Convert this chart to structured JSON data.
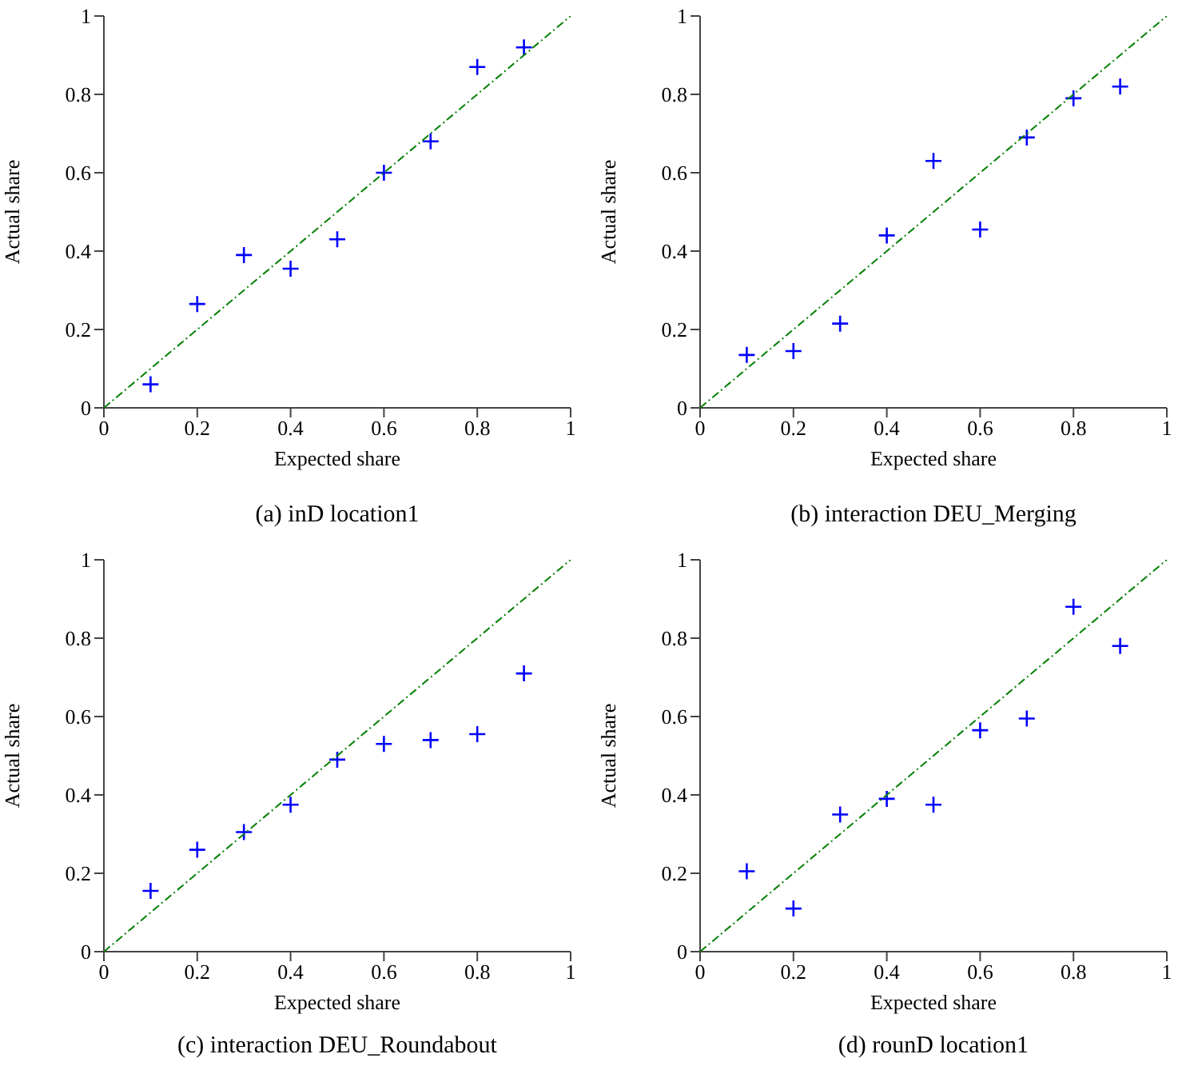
{
  "chart_data": [
    {
      "type": "scatter",
      "title": "(a) inD location1",
      "xlabel": "Expected share",
      "ylabel": "Actual share",
      "xlim": [
        0,
        1
      ],
      "ylim": [
        0,
        1
      ],
      "xticks": [
        0,
        0.2,
        0.4,
        0.6,
        0.8,
        1
      ],
      "yticks": [
        0,
        0.2,
        0.4,
        0.6,
        0.8,
        1
      ],
      "grid": false,
      "legend": false,
      "series": [
        {
          "type": "scatter",
          "marker": "cross",
          "color": "#0000ff",
          "x": [
            0.1,
            0.2,
            0.3,
            0.4,
            0.5,
            0.6,
            0.7,
            0.8,
            0.9
          ],
          "values": [
            0.06,
            0.265,
            0.39,
            0.355,
            0.43,
            0.6,
            0.68,
            0.87,
            0.92
          ]
        },
        {
          "type": "line",
          "color": "#008000",
          "line_style": "dashed",
          "x": [
            0,
            1
          ],
          "values": [
            0,
            1
          ]
        }
      ]
    },
    {
      "type": "scatter",
      "title": "(b) interaction DEU_Merging",
      "xlabel": "Expected share",
      "ylabel": "Actual share",
      "xlim": [
        0,
        1
      ],
      "ylim": [
        0,
        1
      ],
      "xticks": [
        0,
        0.2,
        0.4,
        0.6,
        0.8,
        1
      ],
      "yticks": [
        0,
        0.2,
        0.4,
        0.6,
        0.8,
        1
      ],
      "grid": false,
      "legend": false,
      "series": [
        {
          "type": "scatter",
          "marker": "cross",
          "color": "#0000ff",
          "x": [
            0.1,
            0.2,
            0.3,
            0.4,
            0.5,
            0.6,
            0.7,
            0.8,
            0.9
          ],
          "values": [
            0.135,
            0.145,
            0.215,
            0.44,
            0.63,
            0.455,
            0.69,
            0.79,
            0.82
          ]
        },
        {
          "type": "line",
          "color": "#008000",
          "line_style": "dashed",
          "x": [
            0,
            1
          ],
          "values": [
            0,
            1
          ]
        }
      ]
    },
    {
      "type": "scatter",
      "title": "(c) interaction DEU_Roundabout",
      "xlabel": "Expected share",
      "ylabel": "Actual share",
      "xlim": [
        0,
        1
      ],
      "ylim": [
        0,
        1
      ],
      "xticks": [
        0,
        0.2,
        0.4,
        0.6,
        0.8,
        1
      ],
      "yticks": [
        0,
        0.2,
        0.4,
        0.6,
        0.8,
        1
      ],
      "grid": false,
      "legend": false,
      "series": [
        {
          "type": "scatter",
          "marker": "cross",
          "color": "#0000ff",
          "x": [
            0.1,
            0.2,
            0.3,
            0.4,
            0.5,
            0.6,
            0.7,
            0.8,
            0.9
          ],
          "values": [
            0.155,
            0.26,
            0.305,
            0.375,
            0.49,
            0.53,
            0.54,
            0.555,
            0.71
          ]
        },
        {
          "type": "line",
          "color": "#008000",
          "line_style": "dashed",
          "x": [
            0,
            1
          ],
          "values": [
            0,
            1
          ]
        }
      ]
    },
    {
      "type": "scatter",
      "title": "(d) rounD location1",
      "xlabel": "Expected share",
      "ylabel": "Actual share",
      "xlim": [
        0,
        1
      ],
      "ylim": [
        0,
        1
      ],
      "xticks": [
        0,
        0.2,
        0.4,
        0.6,
        0.8,
        1
      ],
      "yticks": [
        0,
        0.2,
        0.4,
        0.6,
        0.8,
        1
      ],
      "grid": false,
      "legend": false,
      "series": [
        {
          "type": "scatter",
          "marker": "cross",
          "color": "#0000ff",
          "x": [
            0.1,
            0.2,
            0.3,
            0.4,
            0.5,
            0.6,
            0.7,
            0.8,
            0.9
          ],
          "values": [
            0.205,
            0.11,
            0.35,
            0.39,
            0.375,
            0.565,
            0.595,
            0.88,
            0.78
          ]
        },
        {
          "type": "line",
          "color": "#008000",
          "line_style": "dashed",
          "x": [
            0,
            1
          ],
          "values": [
            0,
            1
          ]
        }
      ]
    }
  ]
}
